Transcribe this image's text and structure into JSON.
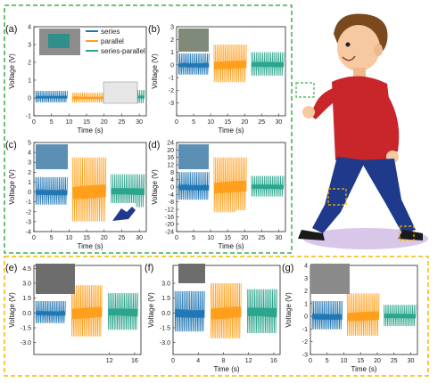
{
  "colors": {
    "series": "#1f77b4",
    "parallel": "#ff9f1c",
    "series_parallel": "#2ca58d",
    "green_frame": "#3cb04a",
    "yellow_frame": "#f5b800"
  },
  "legend": [
    "series",
    "parallel",
    "series-parallel"
  ],
  "chart_data": [
    {
      "id": "a",
      "panel_label": "(a)",
      "type": "line",
      "xlabel": "Time (s)",
      "ylabel": "Voltage (V)",
      "xlim": [
        0,
        32
      ],
      "ylim": [
        -1,
        4
      ],
      "xticks": [
        0,
        5,
        10,
        15,
        20,
        25,
        30
      ],
      "yticks": [
        -1,
        0,
        1,
        2,
        3,
        4
      ],
      "series": [
        {
          "name": "series",
          "x": [
            0.5,
            9.5
          ],
          "amplitude": 0.35,
          "baseline": 0.05
        },
        {
          "name": "parallel",
          "x": [
            11,
            20.5
          ],
          "amplitude": 0.3,
          "baseline": 0.0
        },
        {
          "name": "series-parallel",
          "x": [
            22,
            31.5
          ],
          "amplitude": 0.4,
          "baseline": 0.05
        }
      ]
    },
    {
      "id": "b",
      "panel_label": "(b)",
      "type": "line",
      "xlabel": "Time (s)",
      "ylabel": "Voltage (V)",
      "xlim": [
        0,
        32
      ],
      "ylim": [
        -4,
        3
      ],
      "xticks": [
        0,
        5,
        10,
        15,
        20,
        25,
        30
      ],
      "yticks": [
        -3,
        -2,
        -1,
        0,
        1,
        2,
        3
      ],
      "series": [
        {
          "name": "series",
          "x": [
            0.5,
            9.5
          ],
          "amplitude": 0.9,
          "baseline": 0.0
        },
        {
          "name": "parallel",
          "x": [
            11,
            20.5
          ],
          "amplitude": 1.6,
          "baseline": 0.0
        },
        {
          "name": "series-parallel",
          "x": [
            22,
            31.5
          ],
          "amplitude": 1.0,
          "baseline": 0.0
        }
      ]
    },
    {
      "id": "c",
      "panel_label": "(c)",
      "type": "line",
      "xlabel": "Time (s)",
      "ylabel": "Voltage (V)",
      "xlim": [
        0,
        32
      ],
      "ylim": [
        -4,
        5
      ],
      "xticks": [
        0,
        5,
        10,
        15,
        20,
        25,
        30
      ],
      "yticks": [
        -4,
        -3,
        -2,
        -1,
        0,
        1,
        2,
        3,
        4,
        5
      ],
      "series": [
        {
          "name": "series",
          "x": [
            0.5,
            9.5
          ],
          "amplitude": 1.5,
          "baseline": 0.0
        },
        {
          "name": "parallel",
          "x": [
            11,
            20.5
          ],
          "amplitude": 3.5,
          "baseline": 0.0
        },
        {
          "name": "series-parallel",
          "x": [
            22,
            31.5
          ],
          "amplitude": 1.8,
          "baseline": 0.0
        }
      ]
    },
    {
      "id": "d",
      "panel_label": "(d)",
      "type": "line",
      "xlabel": "Time (s)",
      "ylabel": "Voltage (V)",
      "xlim": [
        0,
        32
      ],
      "ylim": [
        -24,
        24
      ],
      "xticks": [
        0,
        5,
        10,
        15,
        20,
        25,
        30
      ],
      "yticks": [
        -24,
        -20,
        -16,
        -12,
        -8,
        -4,
        0,
        4,
        8,
        12,
        16,
        20,
        24
      ],
      "series": [
        {
          "name": "series",
          "x": [
            0.5,
            9.5
          ],
          "amplitude": 8,
          "baseline": 0.0
        },
        {
          "name": "parallel",
          "x": [
            11,
            20.5
          ],
          "amplitude": 16,
          "baseline": 0.0
        },
        {
          "name": "series-parallel",
          "x": [
            22,
            31.5
          ],
          "amplitude": 6,
          "baseline": 0.0
        }
      ]
    },
    {
      "id": "e",
      "panel_label": "(e)",
      "type": "line",
      "xlabel": "",
      "ylabel": "Voltage (V)",
      "xlim": [
        0,
        17
      ],
      "ylim": [
        -4.2,
        4.8
      ],
      "xticks": [
        12,
        16
      ],
      "yticks": [
        -3.0,
        -1.5,
        0.0,
        1.5,
        3.0,
        4.5
      ],
      "series": [
        {
          "name": "series",
          "x": [
            0.3,
            5
          ],
          "amplitude": 1.2,
          "baseline": 0.0
        },
        {
          "name": "parallel",
          "x": [
            6,
            10.8
          ],
          "amplitude": 2.8,
          "baseline": 0.0
        },
        {
          "name": "series-parallel",
          "x": [
            11.8,
            16.5
          ],
          "amplitude": 2.0,
          "baseline": 0.0
        }
      ]
    },
    {
      "id": "f",
      "panel_label": "(f)",
      "type": "line",
      "xlabel": "Time (s)",
      "ylabel": "Voltage (V)",
      "xlim": [
        0,
        17
      ],
      "ylim": [
        -4.2,
        4.8
      ],
      "xticks": [
        0,
        4,
        8,
        12,
        16
      ],
      "yticks": [
        -3.0,
        -1.5,
        0.0,
        1.5,
        3.0
      ],
      "series": [
        {
          "name": "series",
          "x": [
            0.3,
            5
          ],
          "amplitude": 2.2,
          "baseline": 0.0
        },
        {
          "name": "parallel",
          "x": [
            6,
            10.8
          ],
          "amplitude": 3.0,
          "baseline": 0.0
        },
        {
          "name": "series-parallel",
          "x": [
            11.8,
            16.5
          ],
          "amplitude": 2.4,
          "baseline": 0.0
        }
      ]
    },
    {
      "id": "g",
      "panel_label": "(g)",
      "type": "line",
      "xlabel": "Time (s)",
      "ylabel": "Voltage (V)",
      "xlim": [
        0,
        32
      ],
      "ylim": [
        -3,
        4
      ],
      "xticks": [
        0,
        5,
        10,
        15,
        20,
        25,
        30
      ],
      "yticks": [
        -3,
        -2,
        -1,
        0,
        1,
        2,
        3,
        4
      ],
      "series": [
        {
          "name": "series",
          "x": [
            0.5,
            9.5
          ],
          "amplitude": 1.2,
          "baseline": 0.0
        },
        {
          "name": "parallel",
          "x": [
            11,
            20.5
          ],
          "amplitude": 1.8,
          "baseline": 0.0
        },
        {
          "name": "series-parallel",
          "x": [
            22,
            31.5
          ],
          "amplitude": 0.9,
          "baseline": 0.0
        }
      ]
    }
  ]
}
